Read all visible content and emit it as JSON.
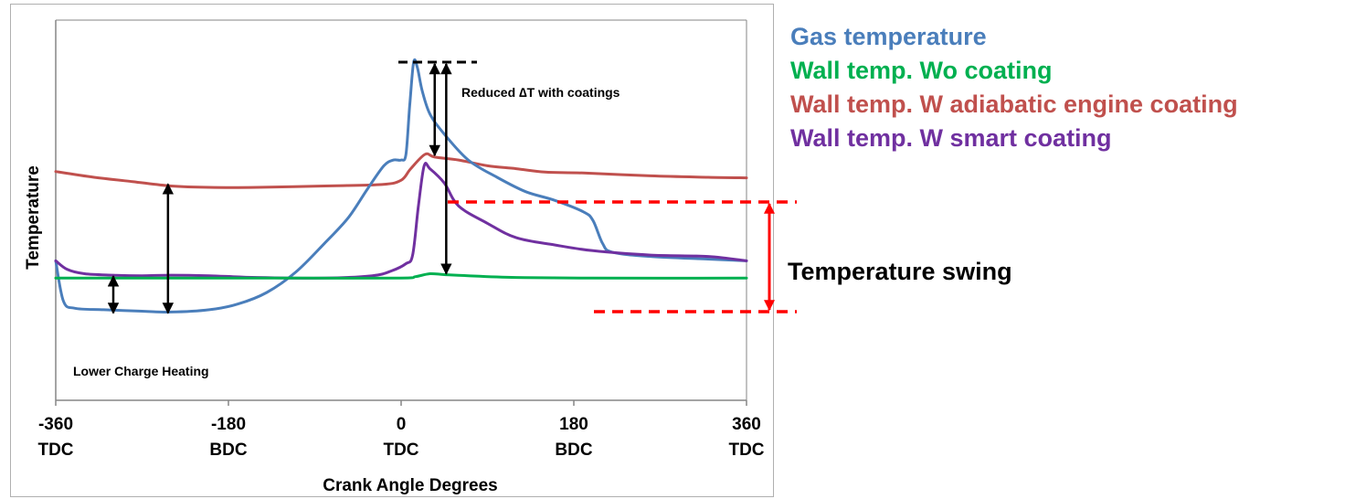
{
  "chart_data": {
    "type": "line",
    "xlabel": "Crank Angle Degrees",
    "ylabel": "Temperature",
    "xlim": [
      -360,
      360
    ],
    "ylim": [
      0,
      1
    ],
    "grid": false,
    "legend_placement": "right",
    "x_ticks": [
      {
        "value": -360,
        "label": "-360",
        "sublabel": "TDC"
      },
      {
        "value": -180,
        "label": "-180",
        "sublabel": "BDC"
      },
      {
        "value": 0,
        "label": "0",
        "sublabel": "TDC"
      },
      {
        "value": 180,
        "label": "180",
        "sublabel": "BDC"
      },
      {
        "value": 360,
        "label": "360",
        "sublabel": "TDC"
      }
    ],
    "series": [
      {
        "name": "Gas temperature",
        "color": "#4a7ebb",
        "points": [
          [
            -360,
            0.31
          ],
          [
            -352,
            0.17
          ],
          [
            -340,
            0.145
          ],
          [
            -310,
            0.14
          ],
          [
            -270,
            0.135
          ],
          [
            -240,
            0.132
          ],
          [
            -200,
            0.14
          ],
          [
            -170,
            0.16
          ],
          [
            -140,
            0.2
          ],
          [
            -110,
            0.27
          ],
          [
            -80,
            0.37
          ],
          [
            -55,
            0.46
          ],
          [
            -35,
            0.56
          ],
          [
            -18,
            0.64
          ],
          [
            -8,
            0.66
          ],
          [
            0,
            0.66
          ],
          [
            5,
            0.68
          ],
          [
            9,
            0.85
          ],
          [
            13,
            1.0
          ],
          [
            17,
            0.98
          ],
          [
            22,
            0.9
          ],
          [
            30,
            0.82
          ],
          [
            45,
            0.75
          ],
          [
            70,
            0.66
          ],
          [
            100,
            0.6
          ],
          [
            130,
            0.55
          ],
          [
            160,
            0.52
          ],
          [
            190,
            0.48
          ],
          [
            200,
            0.45
          ],
          [
            210,
            0.37
          ],
          [
            220,
            0.34
          ],
          [
            260,
            0.325
          ],
          [
            320,
            0.316
          ],
          [
            360,
            0.31
          ]
        ]
      },
      {
        "name": "Wall temp. Wo coating",
        "color": "#00b050",
        "points": [
          [
            -360,
            0.25
          ],
          [
            -200,
            0.25
          ],
          [
            -100,
            0.25
          ],
          [
            0,
            0.25
          ],
          [
            15,
            0.255
          ],
          [
            30,
            0.265
          ],
          [
            45,
            0.262
          ],
          [
            70,
            0.258
          ],
          [
            120,
            0.252
          ],
          [
            200,
            0.25
          ],
          [
            360,
            0.25
          ]
        ]
      },
      {
        "name": "Wall temp. W adiabatic engine coating",
        "color": "#c0504d",
        "points": [
          [
            -360,
            0.62
          ],
          [
            -320,
            0.6
          ],
          [
            -280,
            0.585
          ],
          [
            -240,
            0.57
          ],
          [
            -200,
            0.565
          ],
          [
            -150,
            0.565
          ],
          [
            -80,
            0.57
          ],
          [
            -20,
            0.575
          ],
          [
            0,
            0.59
          ],
          [
            10,
            0.63
          ],
          [
            25,
            0.68
          ],
          [
            35,
            0.67
          ],
          [
            60,
            0.66
          ],
          [
            90,
            0.64
          ],
          [
            120,
            0.63
          ],
          [
            150,
            0.618
          ],
          [
            190,
            0.615
          ],
          [
            260,
            0.605
          ],
          [
            320,
            0.6
          ],
          [
            360,
            0.598
          ]
        ]
      },
      {
        "name": "Wall temp. W smart coating",
        "color": "#7030a0",
        "points": [
          [
            -360,
            0.31
          ],
          [
            -348,
            0.28
          ],
          [
            -330,
            0.265
          ],
          [
            -300,
            0.26
          ],
          [
            -270,
            0.258
          ],
          [
            -240,
            0.26
          ],
          [
            -200,
            0.258
          ],
          [
            -150,
            0.252
          ],
          [
            -80,
            0.25
          ],
          [
            -30,
            0.258
          ],
          [
            -10,
            0.275
          ],
          [
            5,
            0.3
          ],
          [
            12,
            0.33
          ],
          [
            18,
            0.5
          ],
          [
            24,
            0.64
          ],
          [
            30,
            0.63
          ],
          [
            45,
            0.58
          ],
          [
            60,
            0.5
          ],
          [
            90,
            0.44
          ],
          [
            120,
            0.39
          ],
          [
            160,
            0.365
          ],
          [
            200,
            0.345
          ],
          [
            260,
            0.33
          ],
          [
            320,
            0.325
          ],
          [
            360,
            0.31
          ]
        ]
      }
    ],
    "annotations": [
      {
        "text": "Reduced ∆T with coatings"
      },
      {
        "text": "Lower Charge Heating"
      }
    ]
  },
  "swing_label": "Temperature swing",
  "arrow_color": "#000000",
  "swing_color": "#ff0000"
}
